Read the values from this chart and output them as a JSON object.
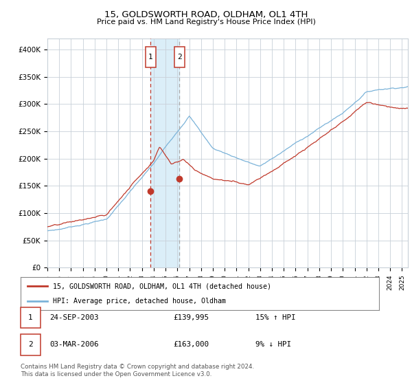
{
  "title": "15, GOLDSWORTH ROAD, OLDHAM, OL1 4TH",
  "subtitle": "Price paid vs. HM Land Registry's House Price Index (HPI)",
  "ylabel_ticks": [
    "£0",
    "£50K",
    "£100K",
    "£150K",
    "£200K",
    "£250K",
    "£300K",
    "£350K",
    "£400K"
  ],
  "ylabel_values": [
    0,
    50000,
    100000,
    150000,
    200000,
    250000,
    300000,
    350000,
    400000
  ],
  "xlim_start": 1995.0,
  "xlim_end": 2025.5,
  "ylim": [
    0,
    420000
  ],
  "sale1_date": 2003.73,
  "sale1_price": 139995,
  "sale2_date": 2006.17,
  "sale2_price": 163000,
  "hpi_color": "#7bb3d9",
  "property_color": "#c0392b",
  "shade_color": "#dbeef8",
  "grid_color": "#c8d0d8",
  "background_color": "#ffffff",
  "legend_line1": "15, GOLDSWORTH ROAD, OLDHAM, OL1 4TH (detached house)",
  "legend_line2": "HPI: Average price, detached house, Oldham",
  "table_row1_num": "1",
  "table_row1_date": "24-SEP-2003",
  "table_row1_price": "£139,995",
  "table_row1_hpi": "15% ↑ HPI",
  "table_row2_num": "2",
  "table_row2_date": "03-MAR-2006",
  "table_row2_price": "£163,000",
  "table_row2_hpi": "9% ↓ HPI",
  "footnote_line1": "Contains HM Land Registry data © Crown copyright and database right 2024.",
  "footnote_line2": "This data is licensed under the Open Government Licence v3.0."
}
